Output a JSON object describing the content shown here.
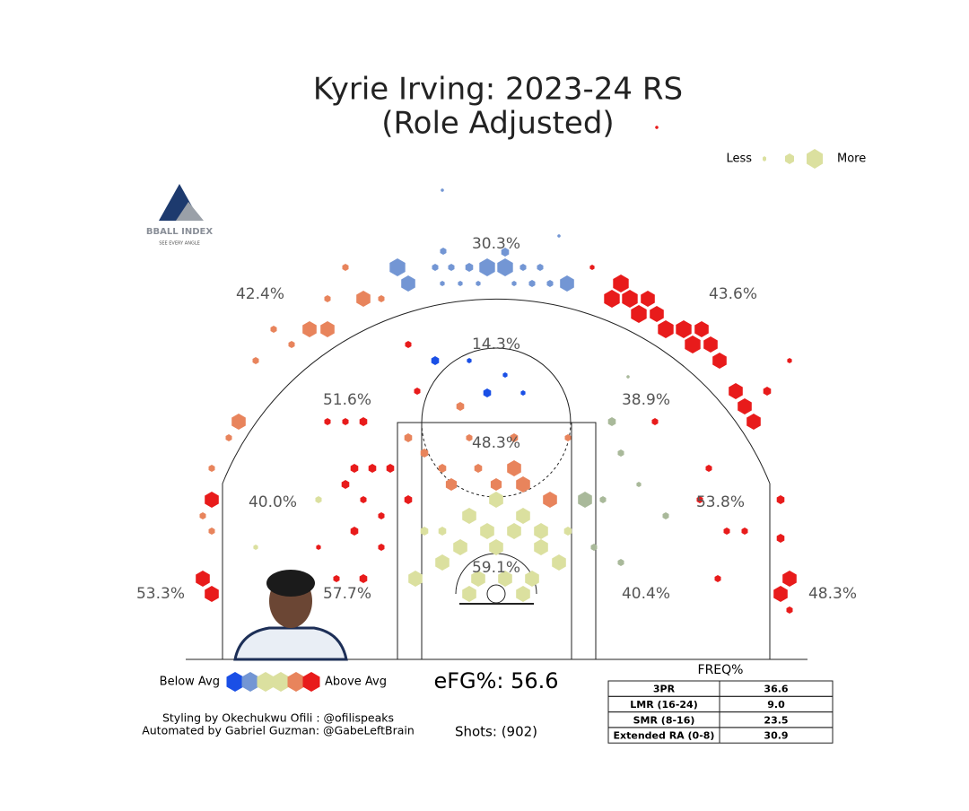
{
  "header": {
    "title": "Kyrie Irving: 2023-24 RS",
    "subtitle": "(Role Adjusted)"
  },
  "size_legend": {
    "less": "Less",
    "more": "More"
  },
  "logo": {
    "name": "BBALL INDEX",
    "tagline": "SEE EVERY ANGLE"
  },
  "zones": [
    "30.3%",
    "42.4%",
    "43.6%",
    "14.3%",
    "51.6%",
    "38.9%",
    "48.3%",
    "40.0%",
    "53.8%",
    "59.1%",
    "53.3%",
    "57.7%",
    "40.4%",
    "48.3%"
  ],
  "color_legend": {
    "below": "Below Avg",
    "above": "Above Avg",
    "colors": [
      "#1a4fe6",
      "#7396d4",
      "#dbe09f",
      "#a9b99a",
      "#e8845c",
      "#e81b1b"
    ]
  },
  "efg": "eFG%: 56.6",
  "shots": "Shots: (902)",
  "credits": [
    "Styling by Okechukwu Ofili : @ofilispeaks",
    "Automated by Gabriel Guzman: @GabeLeftBrain"
  ],
  "table": {
    "title": "FREQ%",
    "rows": [
      [
        "3PR",
        "36.6"
      ],
      [
        "LMR (16-24)",
        "9.0"
      ],
      [
        "SMR (8-16)",
        "23.5"
      ],
      [
        "Extended RA (0-8)",
        "30.9"
      ]
    ]
  }
}
